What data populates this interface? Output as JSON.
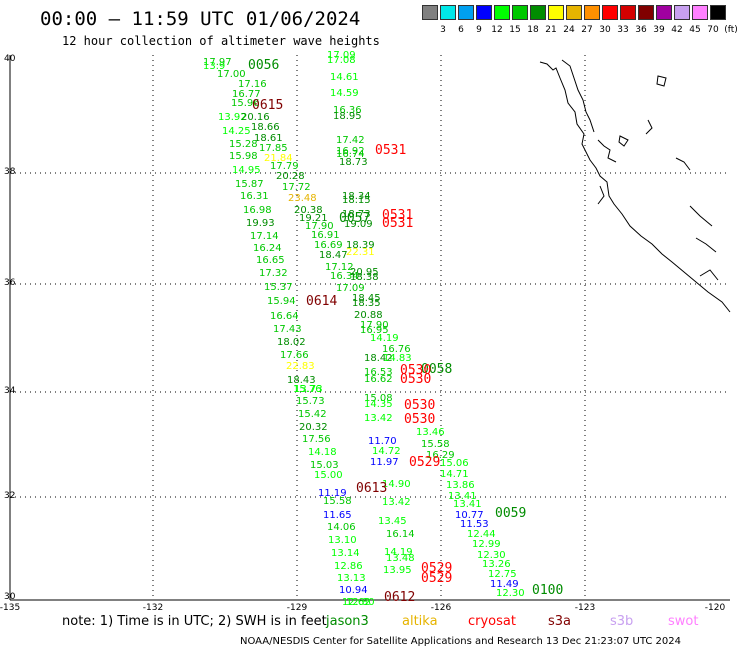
{
  "header": {
    "title": "00:00 – 11:59 UTC 01/06/2024",
    "subtitle": "12 hour collection of altimeter wave heights"
  },
  "legend": {
    "colors": [
      "#808080",
      "#00e8e8",
      "#00a0f0",
      "#0000ff",
      "#00ff00",
      "#00c800",
      "#008c00",
      "#ffff00",
      "#e6b400",
      "#ff9000",
      "#ff0000",
      "#d40000",
      "#800000",
      "#a000a0",
      "#c8a0f0",
      "#ff80ff",
      "#000000"
    ],
    "levels": [
      "3",
      "6",
      "9",
      "12",
      "15",
      "18",
      "21",
      "24",
      "27",
      "30",
      "33",
      "36",
      "39",
      "42",
      "45",
      "70",
      "(ft)"
    ]
  },
  "axes": {
    "y_ticks": [
      "40",
      "38",
      "36",
      "34",
      "32",
      "30"
    ],
    "x_ticks": [
      "-135",
      "-132",
      "-129",
      "-126",
      "-123",
      "-120"
    ]
  },
  "observations": [
    {
      "t": "17.97",
      "c": "#00c800"
    },
    {
      "t": "17.09",
      "c": "#00ff00"
    },
    {
      "t": "17.08",
      "c": "#00ff00"
    },
    {
      "t": "17.00",
      "c": "#00c800"
    },
    {
      "t": "16.77",
      "c": "#00c800"
    },
    {
      "t": "17.16",
      "c": "#00c800"
    },
    {
      "t": "13.9",
      "c": "#00ff00"
    },
    {
      "t": "14.61",
      "c": "#00ff00"
    },
    {
      "t": "14.59",
      "c": "#00ff00"
    },
    {
      "t": "15.96",
      "c": "#00c800"
    },
    {
      "t": "16.36",
      "c": "#00c800"
    },
    {
      "t": "18.95",
      "c": "#008c00"
    },
    {
      "t": "13.92",
      "c": "#00ff00"
    },
    {
      "t": "20.16",
      "c": "#008c00"
    },
    {
      "t": "18.66",
      "c": "#008c00"
    },
    {
      "t": "14.25",
      "c": "#00ff00"
    },
    {
      "t": "18.61",
      "c": "#008c00"
    },
    {
      "t": "17.42",
      "c": "#00c800"
    },
    {
      "t": "15.28",
      "c": "#00c800"
    },
    {
      "t": "17.85",
      "c": "#00c800"
    },
    {
      "t": "16.92",
      "c": "#00c800"
    },
    {
      "t": "16.74",
      "c": "#00c800"
    },
    {
      "t": "15.98",
      "c": "#00c800"
    },
    {
      "t": "21.84",
      "c": "#ffff00"
    },
    {
      "t": "18.73",
      "c": "#008c00"
    },
    {
      "t": "14.95",
      "c": "#00ff00"
    },
    {
      "t": "17.79",
      "c": "#00c800"
    },
    {
      "t": "15.87",
      "c": "#00c800"
    },
    {
      "t": "20.28",
      "c": "#008c00"
    },
    {
      "t": "17.72",
      "c": "#00c800"
    },
    {
      "t": "18.34",
      "c": "#008c00"
    },
    {
      "t": "16.31",
      "c": "#00c800"
    },
    {
      "t": "23.48",
      "c": "#e6b400"
    },
    {
      "t": "18.15",
      "c": "#008c00"
    },
    {
      "t": "16.98",
      "c": "#00c800"
    },
    {
      "t": "20.38",
      "c": "#008c00"
    },
    {
      "t": "18.73",
      "c": "#008c00"
    },
    {
      "t": "19.93",
      "c": "#008c00"
    },
    {
      "t": "19.21",
      "c": "#008c00"
    },
    {
      "t": "17.90",
      "c": "#00c800"
    },
    {
      "t": "19.09",
      "c": "#008c00"
    },
    {
      "t": "17.14",
      "c": "#00c800"
    },
    {
      "t": "16.91",
      "c": "#00c800"
    },
    {
      "t": "16.24",
      "c": "#00c800"
    },
    {
      "t": "16.69",
      "c": "#00c800"
    },
    {
      "t": "18.39",
      "c": "#008c00"
    },
    {
      "t": "22.31",
      "c": "#ffff00"
    },
    {
      "t": "16.65",
      "c": "#00c800"
    },
    {
      "t": "18.47",
      "c": "#008c00"
    },
    {
      "t": "17.12",
      "c": "#00c800"
    },
    {
      "t": "20.95",
      "c": "#008c00"
    },
    {
      "t": "17.32",
      "c": "#00c800"
    },
    {
      "t": "16.34",
      "c": "#00c800"
    },
    {
      "t": "18.38",
      "c": "#008c00"
    },
    {
      "t": "15.37",
      "c": "#00c800"
    },
    {
      "t": "17.09",
      "c": "#00c800"
    },
    {
      "t": "15.94",
      "c": "#00c800"
    },
    {
      "t": "18.45",
      "c": "#008c00"
    },
    {
      "t": "18.35",
      "c": "#008c00"
    },
    {
      "t": "16.64",
      "c": "#00c800"
    },
    {
      "t": "20.88",
      "c": "#008c00"
    },
    {
      "t": "17.43",
      "c": "#00c800"
    },
    {
      "t": "17.90",
      "c": "#00c800"
    },
    {
      "t": "16.95",
      "c": "#00c800"
    },
    {
      "t": "18.02",
      "c": "#008c00"
    },
    {
      "t": "14.19",
      "c": "#00ff00"
    },
    {
      "t": "17.66",
      "c": "#00c800"
    },
    {
      "t": "16.76",
      "c": "#00c800"
    },
    {
      "t": "18.42",
      "c": "#008c00"
    },
    {
      "t": "14.83",
      "c": "#00ff00"
    },
    {
      "t": "22.83",
      "c": "#ffff00"
    },
    {
      "t": "18.43",
      "c": "#008c00"
    },
    {
      "t": "16.53",
      "c": "#00c800"
    },
    {
      "t": "16.62",
      "c": "#00c800"
    },
    {
      "t": "13.73",
      "c": "#00ff00"
    },
    {
      "t": "15.76",
      "c": "#00ff00"
    },
    {
      "t": "15.73",
      "c": "#00c800"
    },
    {
      "t": "15.08",
      "c": "#00c800"
    },
    {
      "t": "14.35",
      "c": "#00ff00"
    },
    {
      "t": "15.42",
      "c": "#00c800"
    },
    {
      "t": "13.42",
      "c": "#00ff00"
    },
    {
      "t": "20.32",
      "c": "#008c00"
    },
    {
      "t": "13.46",
      "c": "#00ff00"
    },
    {
      "t": "17.56",
      "c": "#00c800"
    },
    {
      "t": "11.70",
      "c": "#0000ff"
    },
    {
      "t": "15.58",
      "c": "#00c800"
    },
    {
      "t": "14.18",
      "c": "#00ff00"
    },
    {
      "t": "14.72",
      "c": "#00ff00"
    },
    {
      "t": "16.29",
      "c": "#00c800"
    },
    {
      "t": "15.03",
      "c": "#00c800"
    },
    {
      "t": "11.97",
      "c": "#0000ff"
    },
    {
      "t": "15.06",
      "c": "#00ff00"
    },
    {
      "t": "15.00",
      "c": "#00ff00"
    },
    {
      "t": "14.71",
      "c": "#00ff00"
    },
    {
      "t": "14.90",
      "c": "#00ff00"
    },
    {
      "t": "13.86",
      "c": "#00ff00"
    },
    {
      "t": "11.19",
      "c": "#0000ff"
    },
    {
      "t": "13.41",
      "c": "#00ff00"
    },
    {
      "t": "15.58",
      "c": "#00c800"
    },
    {
      "t": "13.42",
      "c": "#00ff00"
    },
    {
      "t": "13.41",
      "c": "#00ff00"
    },
    {
      "t": "11.65",
      "c": "#0000ff"
    },
    {
      "t": "10.77",
      "c": "#0000ff"
    },
    {
      "t": "11.53",
      "c": "#0000ff"
    },
    {
      "t": "14.06",
      "c": "#00c800"
    },
    {
      "t": "13.45",
      "c": "#00ff00"
    },
    {
      "t": "12.44",
      "c": "#00ff00"
    },
    {
      "t": "13.10",
      "c": "#00ff00"
    },
    {
      "t": "16.14",
      "c": "#00c800"
    },
    {
      "t": "12.99",
      "c": "#00ff00"
    },
    {
      "t": "13.14",
      "c": "#00ff00"
    },
    {
      "t": "14.19",
      "c": "#00ff00"
    },
    {
      "t": "13.48",
      "c": "#00ff00"
    },
    {
      "t": "12.30",
      "c": "#00ff00"
    },
    {
      "t": "12.86",
      "c": "#00ff00"
    },
    {
      "t": "13.26",
      "c": "#00ff00"
    },
    {
      "t": "13.13",
      "c": "#00ff00"
    },
    {
      "t": "13.95",
      "c": "#00ff00"
    },
    {
      "t": "12.75",
      "c": "#00ff00"
    },
    {
      "t": "10.94",
      "c": "#0000ff"
    },
    {
      "t": "11.49",
      "c": "#0000ff"
    },
    {
      "t": "12.62",
      "c": "#00ff00"
    },
    {
      "t": "12.30",
      "c": "#00ff00"
    },
    {
      "t": "12.80",
      "c": "#00ff00"
    }
  ],
  "pass_labels": [
    {
      "t": "0056",
      "c": "#008c00"
    },
    {
      "t": "0615",
      "c": "#800000"
    },
    {
      "t": "0531",
      "c": "#ff0000"
    },
    {
      "t": "0531",
      "c": "#ff0000"
    },
    {
      "t": "0531",
      "c": "#ff0000"
    },
    {
      "t": "0057",
      "c": "#008c00"
    },
    {
      "t": "0614",
      "c": "#800000"
    },
    {
      "t": "0058",
      "c": "#008c00"
    },
    {
      "t": "0530",
      "c": "#ff0000"
    },
    {
      "t": "0530",
      "c": "#ff0000"
    },
    {
      "t": "0530",
      "c": "#ff0000"
    },
    {
      "t": "0530",
      "c": "#ff0000"
    },
    {
      "t": "0529",
      "c": "#ff0000"
    },
    {
      "t": "0613",
      "c": "#800000"
    },
    {
      "t": "0059",
      "c": "#008c00"
    },
    {
      "t": "0529",
      "c": "#ff0000"
    },
    {
      "t": "0529",
      "c": "#ff0000"
    },
    {
      "t": "0100",
      "c": "#008c00"
    },
    {
      "t": "0612",
      "c": "#800000"
    }
  ],
  "footer": {
    "note": "note:  1) Time is in UTC; 2) SWH is in feet",
    "satellites": [
      {
        "name": "jason3",
        "c": "#008c00"
      },
      {
        "name": "altika",
        "c": "#e6b400"
      },
      {
        "name": "cryosat",
        "c": "#ff0000"
      },
      {
        "name": "s3a",
        "c": "#800000"
      },
      {
        "name": "s3b",
        "c": "#c8a0f0"
      },
      {
        "name": "swot",
        "c": "#ff80ff"
      }
    ],
    "credit": "NOAA/NESDIS Center for Satellite Applications and Research    13 Dec 21:23:07 UTC 2024"
  }
}
